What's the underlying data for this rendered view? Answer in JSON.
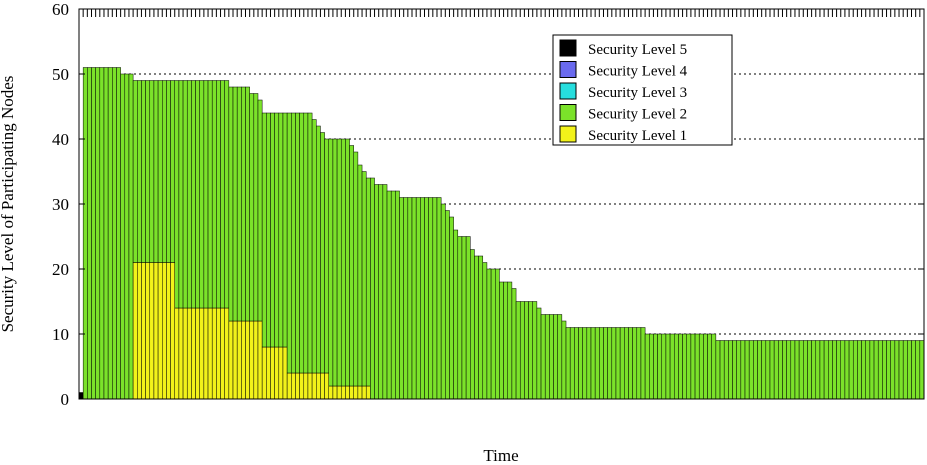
{
  "chart_data": {
    "type": "bar",
    "stacked": true,
    "xlabel": "Time",
    "ylabel": "Security Level of Participating Nodes",
    "ylim": [
      0,
      60
    ],
    "yticks": [
      "0",
      "10",
      "20",
      "30",
      "40",
      "50",
      "60"
    ],
    "grid": "horizontal dotted",
    "legend_position": "top-right",
    "colors": {
      "Security Level 5": "#000000",
      "Security Level 4": "#6a6aee",
      "Security Level 3": "#26dede",
      "Security Level 2": "#7be22a",
      "Security Level 1": "#f2f21a"
    },
    "legend": [
      "Security Level 5",
      "Security Level 4",
      "Security Level 3",
      "Security Level 2",
      "Security Level 1"
    ],
    "total_segments": [
      {
        "from": 1,
        "to": 1,
        "value": 1
      },
      {
        "from": 2,
        "to": 10,
        "value": 51
      },
      {
        "from": 11,
        "to": 13,
        "value": 50
      },
      {
        "from": 14,
        "to": 36,
        "value": 49
      },
      {
        "from": 37,
        "to": 41,
        "value": 48
      },
      {
        "from": 42,
        "to": 43,
        "value": 47
      },
      {
        "from": 44,
        "to": 44,
        "value": 46
      },
      {
        "from": 45,
        "to": 56,
        "value": 44
      },
      {
        "from": 57,
        "to": 57,
        "value": 43
      },
      {
        "from": 58,
        "to": 58,
        "value": 42
      },
      {
        "from": 59,
        "to": 59,
        "value": 41
      },
      {
        "from": 60,
        "to": 65,
        "value": 40
      },
      {
        "from": 66,
        "to": 66,
        "value": 39
      },
      {
        "from": 67,
        "to": 67,
        "value": 38
      },
      {
        "from": 68,
        "to": 68,
        "value": 36
      },
      {
        "from": 69,
        "to": 69,
        "value": 35
      },
      {
        "from": 70,
        "to": 71,
        "value": 34
      },
      {
        "from": 72,
        "to": 74,
        "value": 33
      },
      {
        "from": 75,
        "to": 77,
        "value": 32
      },
      {
        "from": 78,
        "to": 87,
        "value": 31
      },
      {
        "from": 88,
        "to": 88,
        "value": 30
      },
      {
        "from": 89,
        "to": 89,
        "value": 29
      },
      {
        "from": 90,
        "to": 90,
        "value": 28
      },
      {
        "from": 91,
        "to": 91,
        "value": 26
      },
      {
        "from": 92,
        "to": 94,
        "value": 25
      },
      {
        "from": 95,
        "to": 95,
        "value": 23
      },
      {
        "from": 96,
        "to": 97,
        "value": 22
      },
      {
        "from": 98,
        "to": 98,
        "value": 21
      },
      {
        "from": 99,
        "to": 101,
        "value": 20
      },
      {
        "from": 102,
        "to": 104,
        "value": 18
      },
      {
        "from": 105,
        "to": 105,
        "value": 17
      },
      {
        "from": 106,
        "to": 110,
        "value": 15
      },
      {
        "from": 111,
        "to": 111,
        "value": 14
      },
      {
        "from": 112,
        "to": 116,
        "value": 13
      },
      {
        "from": 117,
        "to": 117,
        "value": 12
      },
      {
        "from": 118,
        "to": 136,
        "value": 11
      },
      {
        "from": 137,
        "to": 153,
        "value": 10
      },
      {
        "from": 154,
        "to": 203,
        "value": 9
      }
    ],
    "level1_segments": [
      {
        "from": 14,
        "to": 23,
        "value": 21
      },
      {
        "from": 24,
        "to": 36,
        "value": 14
      },
      {
        "from": 37,
        "to": 44,
        "value": 12
      },
      {
        "from": 45,
        "to": 50,
        "value": 8
      },
      {
        "from": 51,
        "to": 60,
        "value": 4
      },
      {
        "from": 61,
        "to": 70,
        "value": 2
      }
    ],
    "level5_bars": [
      {
        "from": 1,
        "to": 1,
        "value": 1
      }
    ]
  }
}
